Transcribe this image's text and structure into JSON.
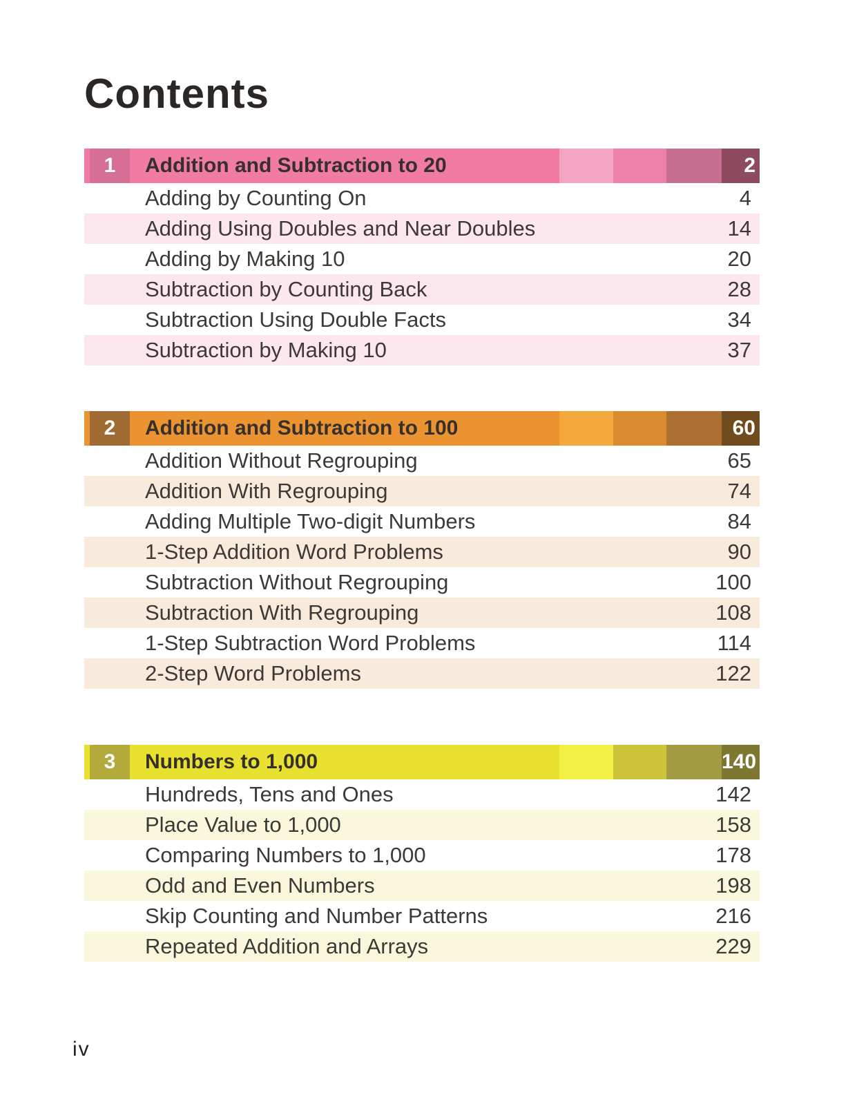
{
  "page": {
    "title": "Contents",
    "footer_page_label": "iv"
  },
  "chapters": [
    {
      "number": "1",
      "title": "Addition and Subtraction to 20",
      "page": "2",
      "colors": {
        "main": "#F17BA3",
        "number_block": "#D66F96",
        "segment_light": "#F3A5C3",
        "segment_mid": "#EE81A9",
        "segment_dark": "#C66F90",
        "segment_darkest": "#8E4A5F",
        "row_tint": "#FCE7EE"
      },
      "items": [
        {
          "label": "Adding by Counting On",
          "page": "4"
        },
        {
          "label": "Adding Using Doubles and Near Doubles",
          "page": "14"
        },
        {
          "label": "Adding by Making 10",
          "page": "20"
        },
        {
          "label": "Subtraction by Counting Back",
          "page": "28"
        },
        {
          "label": "Subtraction Using Double Facts",
          "page": "34"
        },
        {
          "label": "Subtraction by Making 10",
          "page": "37"
        }
      ]
    },
    {
      "number": "2",
      "title": "Addition and Subtraction to 100",
      "page": "60",
      "colors": {
        "main": "#EA9330",
        "number_block": "#A06B33",
        "segment_light": "#F3A83C",
        "segment_mid": "#DA8B2F",
        "segment_dark": "#AE7031",
        "segment_darkest": "#6F4B1E",
        "row_tint": "#F9EBDC"
      },
      "items": [
        {
          "label": "Addition Without Regrouping",
          "page": "65"
        },
        {
          "label": "Addition With Regrouping",
          "page": "74"
        },
        {
          "label": "Adding Multiple Two-digit Numbers",
          "page": "84"
        },
        {
          "label": "1-Step Addition Word Problems",
          "page": "90"
        },
        {
          "label": "Subtraction Without Regrouping",
          "page": "100"
        },
        {
          "label": "Subtraction With Regrouping",
          "page": "108"
        },
        {
          "label": "1-Step Subtraction Word Problems",
          "page": "114"
        },
        {
          "label": "2-Step Word Problems",
          "page": "122"
        }
      ]
    },
    {
      "number": "3",
      "title": "Numbers to 1,000",
      "page": "140",
      "colors": {
        "main": "#E9E12F",
        "number_block": "#B2AB3C",
        "segment_light": "#F1EE44",
        "segment_mid": "#CDC43A",
        "segment_dark": "#A29B41",
        "segment_darkest": "#7D7732",
        "row_tint": "#FAF8DC"
      },
      "items": [
        {
          "label": "Hundreds, Tens and Ones",
          "page": "142"
        },
        {
          "label": "Place Value to 1,000",
          "page": "158"
        },
        {
          "label": "Comparing Numbers to 1,000",
          "page": "178"
        },
        {
          "label": "Odd and Even Numbers",
          "page": "198"
        },
        {
          "label": "Skip Counting and Number Patterns",
          "page": "216"
        },
        {
          "label": "Repeated Addition and Arrays",
          "page": "229"
        }
      ]
    }
  ]
}
